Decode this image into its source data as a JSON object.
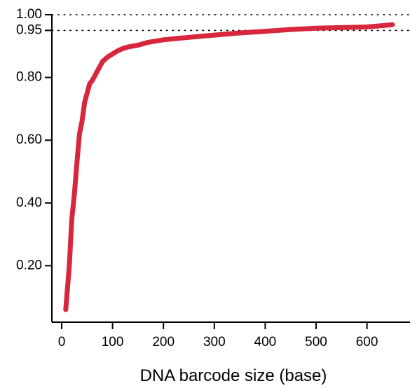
{
  "chart_data": {
    "type": "line",
    "title": "",
    "xlabel": "DNA barcode size (base)",
    "ylabel": "",
    "xlim": [
      0,
      660
    ],
    "ylim": [
      0,
      1.0
    ],
    "x_ticks": [
      {
        "value": 0,
        "label": "0"
      },
      {
        "value": 100,
        "label": "100"
      },
      {
        "value": 200,
        "label": "200"
      },
      {
        "value": 300,
        "label": "300"
      },
      {
        "value": 400,
        "label": "400"
      },
      {
        "value": 500,
        "label": "500"
      },
      {
        "value": 600,
        "label": "600"
      }
    ],
    "y_ticks": [
      {
        "value": 0.2,
        "label": "0.20"
      },
      {
        "value": 0.4,
        "label": "0.40"
      },
      {
        "value": 0.6,
        "label": "0.60"
      },
      {
        "value": 0.8,
        "label": "0.80"
      },
      {
        "value": 0.95,
        "label": "0.95"
      },
      {
        "value": 1.0,
        "label": "1.00"
      }
    ],
    "reference_lines": [
      {
        "axis": "y",
        "value": 1.0,
        "style": "dotted"
      },
      {
        "axis": "y",
        "value": 0.95,
        "style": "dotted"
      }
    ],
    "grid": false,
    "legend": "none",
    "series": [
      {
        "color": "#d7263d",
        "x": [
          8,
          15,
          20,
          25,
          30,
          35,
          40,
          45,
          50,
          55,
          60,
          70,
          80,
          90,
          100,
          110,
          120,
          130,
          150,
          170,
          200,
          250,
          300,
          350,
          400,
          450,
          500,
          550,
          600,
          650
        ],
        "y": [
          0.06,
          0.2,
          0.35,
          0.43,
          0.53,
          0.62,
          0.66,
          0.72,
          0.75,
          0.78,
          0.79,
          0.82,
          0.85,
          0.865,
          0.875,
          0.885,
          0.892,
          0.897,
          0.903,
          0.912,
          0.92,
          0.928,
          0.935,
          0.942,
          0.947,
          0.953,
          0.957,
          0.959,
          0.961,
          0.968
        ]
      }
    ]
  }
}
